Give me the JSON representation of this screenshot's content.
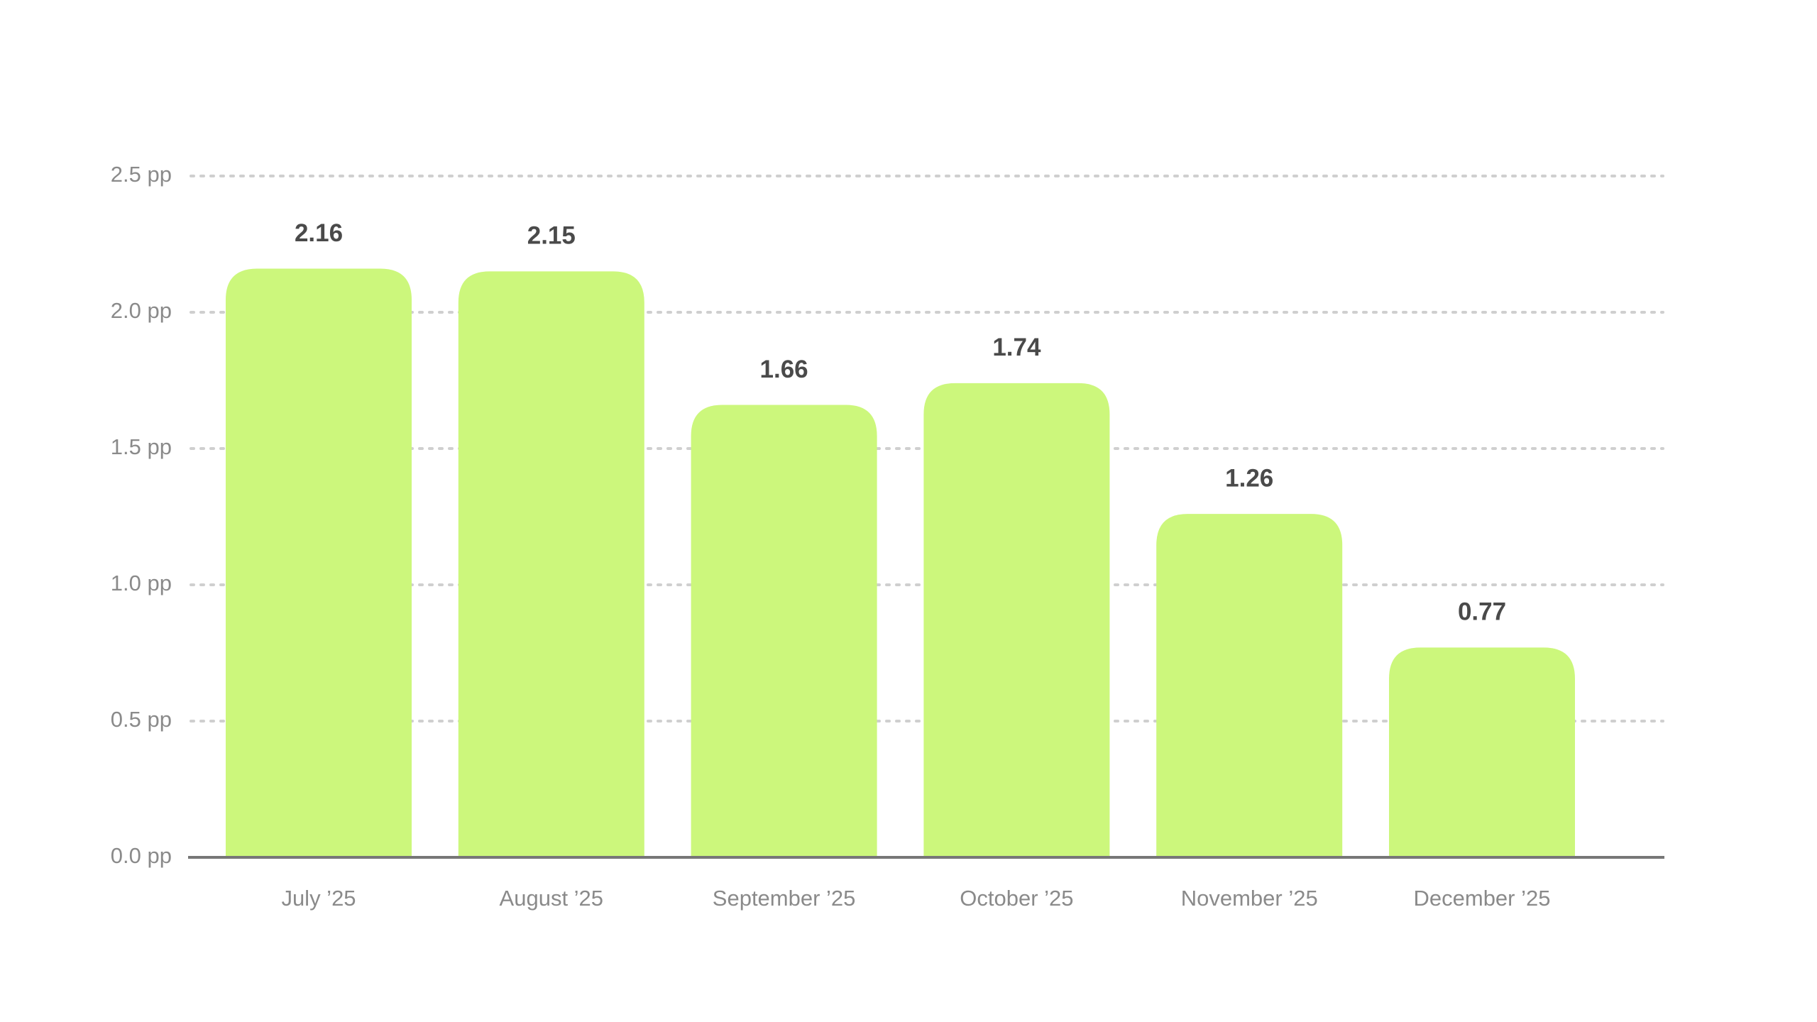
{
  "chart_data": {
    "type": "bar",
    "categories": [
      "July ’25",
      "August ’25",
      "September ’25",
      "October ’25",
      "November ’25",
      "December ’25"
    ],
    "values": [
      2.16,
      2.15,
      1.66,
      1.74,
      1.26,
      0.77
    ],
    "data_labels": [
      "2.16",
      "2.15",
      "1.66",
      "1.74",
      "1.26",
      "0.77"
    ],
    "y_ticks": [
      0.0,
      0.5,
      1.0,
      1.5,
      2.0,
      2.5
    ],
    "y_tick_labels": [
      "0.0 pp",
      "0.5 pp",
      "1.0 pp",
      "1.5 pp",
      "2.0 pp",
      "2.5 pp"
    ],
    "ylim": [
      0,
      2.5
    ],
    "title": "",
    "xlabel": "",
    "ylabel": "",
    "grid": true,
    "legend": "none",
    "colors": {
      "bar": "#ccf77c",
      "grid": "#cfcfcf",
      "axis": "#777777",
      "tick_text": "#8a8a8a",
      "label_text": "#4a4a4a"
    }
  }
}
